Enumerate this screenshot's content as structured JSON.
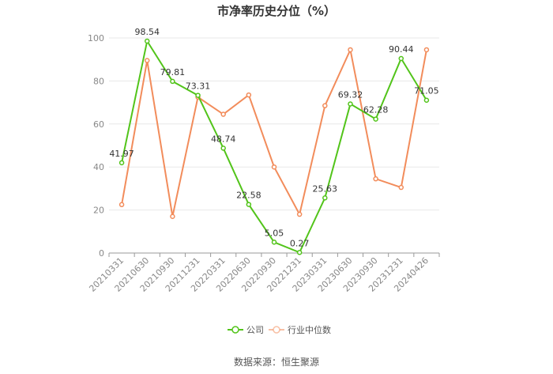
{
  "chart_data": {
    "type": "line",
    "title": "市净率历史分位（%）",
    "categories": [
      "20210331",
      "20210630",
      "20210930",
      "20211231",
      "20220331",
      "20220630",
      "20220930",
      "20221231",
      "20230331",
      "20230630",
      "20230930",
      "20231231",
      "20240426"
    ],
    "ylim": [
      0,
      100
    ],
    "yticks": [
      "0",
      "20",
      "40",
      "60",
      "80",
      "100"
    ],
    "grid": true,
    "legend_position": "bottom",
    "series": [
      {
        "name": "公司",
        "color": "#52c41a",
        "values": [
          41.97,
          98.54,
          79.81,
          73.31,
          48.74,
          22.58,
          5.05,
          0.27,
          25.63,
          69.32,
          62.28,
          90.44,
          71.05
        ],
        "labels": [
          "41.97",
          "98.54",
          "79.81",
          "73.31",
          "48.74",
          "22.58",
          "5.05",
          "0.27",
          "25.63",
          "69.32",
          "62.28",
          "90.44",
          "71.05"
        ]
      },
      {
        "name": "行业中位数",
        "color": "#f28c5b",
        "values": [
          22.5,
          89.5,
          17,
          72.5,
          64.5,
          73.5,
          40,
          18,
          68.5,
          94.5,
          34.5,
          30.5,
          94.5
        ]
      }
    ]
  },
  "source": "数据来源：恒生聚源"
}
